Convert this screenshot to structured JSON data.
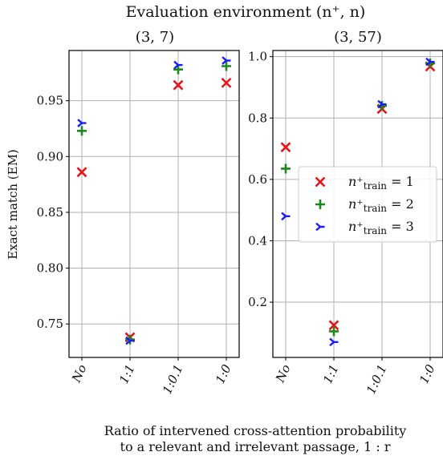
{
  "figure": {
    "suptitle": "Evaluation environment (n⁺, n)",
    "xlabel_line1": "Ratio of intervened cross-attention probability",
    "xlabel_line2": "to a relevant and irrelevant passage, 1 : r",
    "ylabel": "Exact match (EM)"
  },
  "legend": {
    "items": [
      {
        "label": "n⁺",
        "sub": "train",
        "suffix": " = 1",
        "marker": "x",
        "color": "#e8141a"
      },
      {
        "label": "n⁺",
        "sub": "train",
        "suffix": " = 2",
        "marker": "plus",
        "color": "#1a8a1a"
      },
      {
        "label": "n⁺",
        "sub": "train",
        "suffix": " = 3",
        "marker": "tri",
        "color": "#1a1aff"
      }
    ]
  },
  "chart_data": [
    {
      "type": "scatter",
      "title": "(3, 7)",
      "categories": [
        "No",
        "1:1",
        "1:0.1",
        "1:0"
      ],
      "ylim": [
        0.72,
        0.995
      ],
      "yticks": [
        0.75,
        0.8,
        0.85,
        0.9,
        0.95
      ],
      "grid": true,
      "series": [
        {
          "name": "n+train = 1",
          "marker": "x",
          "color": "#e8141a",
          "values": [
            0.886,
            0.738,
            0.964,
            0.966
          ]
        },
        {
          "name": "n+train = 2",
          "marker": "plus",
          "color": "#1a8a1a",
          "values": [
            0.923,
            0.736,
            0.978,
            0.981
          ]
        },
        {
          "name": "n+train = 3",
          "marker": "tri",
          "color": "#1a1aff",
          "values": [
            0.93,
            0.735,
            0.982,
            0.986
          ]
        }
      ]
    },
    {
      "type": "scatter",
      "title": "(3, 57)",
      "categories": [
        "No",
        "1:1",
        "1:0.1",
        "1:0"
      ],
      "ylim": [
        0.02,
        1.02
      ],
      "yticks": [
        0.2,
        0.4,
        0.6,
        0.8,
        1.0
      ],
      "grid": true,
      "legend_position": "center-right",
      "series": [
        {
          "name": "n+train = 1",
          "marker": "x",
          "color": "#e8141a",
          "values": [
            0.705,
            0.125,
            0.83,
            0.968
          ]
        },
        {
          "name": "n+train = 2",
          "marker": "plus",
          "color": "#1a8a1a",
          "values": [
            0.635,
            0.105,
            0.84,
            0.978
          ]
        },
        {
          "name": "n+train = 3",
          "marker": "tri",
          "color": "#1a1aff",
          "values": [
            0.48,
            0.07,
            0.845,
            0.983
          ]
        }
      ]
    }
  ]
}
